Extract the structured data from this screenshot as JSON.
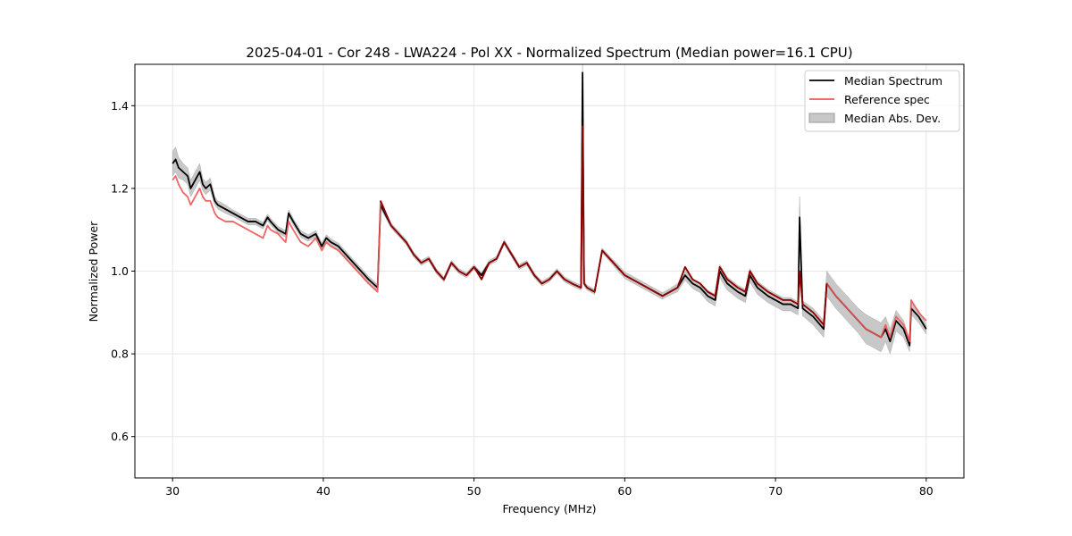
{
  "chart_data": {
    "type": "line",
    "title": "2025-04-01 - Cor 248 - LWA224 - Pol XX - Normalized Spectrum (Median power=16.1 CPU)",
    "xlabel": "Frequency (MHz)",
    "ylabel": "Normalized Power",
    "xlim": [
      27.5,
      82.5
    ],
    "ylim": [
      0.5,
      1.5
    ],
    "xticks": [
      30,
      40,
      50,
      60,
      70,
      80
    ],
    "yticks": [
      0.6,
      0.8,
      1.0,
      1.2,
      1.4
    ],
    "xtick_labels": [
      "30",
      "40",
      "50",
      "60",
      "70",
      "80"
    ],
    "ytick_labels": [
      "0.6",
      "0.8",
      "1.0",
      "1.2",
      "1.4"
    ],
    "grid": true,
    "legend_position": "top-right",
    "series": [
      {
        "name": "Median Spectrum",
        "color": "#000000",
        "x": [
          30.0,
          30.2,
          30.4,
          30.7,
          31.0,
          31.2,
          31.5,
          31.8,
          32.0,
          32.2,
          32.5,
          32.8,
          33.0,
          33.5,
          34.0,
          34.5,
          35.0,
          35.5,
          36.0,
          36.3,
          36.5,
          37.0,
          37.5,
          37.7,
          38.0,
          38.5,
          39.0,
          39.5,
          39.9,
          40.2,
          40.5,
          41.0,
          41.5,
          42.0,
          42.5,
          43.0,
          43.6,
          43.8,
          44.5,
          45.0,
          45.5,
          46.0,
          46.5,
          47.0,
          47.5,
          48.0,
          48.5,
          49.0,
          49.5,
          50.0,
          50.5,
          51.0,
          51.5,
          52.0,
          52.5,
          53.0,
          53.5,
          54.0,
          54.5,
          55.0,
          55.5,
          56.0,
          56.5,
          57.1,
          57.2,
          57.3,
          57.5,
          58.0,
          58.5,
          59.0,
          59.5,
          60.0,
          60.5,
          61.0,
          61.5,
          62.0,
          62.5,
          63.0,
          63.5,
          64.0,
          64.5,
          65.0,
          65.5,
          66.0,
          66.3,
          66.8,
          67.5,
          68.0,
          68.3,
          68.8,
          69.5,
          70.0,
          70.5,
          71.0,
          71.5,
          71.6,
          71.8,
          72.5,
          73.2,
          73.4,
          74.0,
          74.5,
          75.0,
          75.5,
          76.0,
          76.5,
          77.0,
          77.3,
          77.6,
          78.0,
          78.5,
          78.9,
          79.0,
          79.5,
          80.0
        ],
        "values": [
          1.26,
          1.27,
          1.25,
          1.24,
          1.23,
          1.2,
          1.22,
          1.24,
          1.21,
          1.2,
          1.21,
          1.17,
          1.16,
          1.15,
          1.14,
          1.13,
          1.12,
          1.12,
          1.11,
          1.13,
          1.12,
          1.1,
          1.09,
          1.14,
          1.12,
          1.09,
          1.08,
          1.09,
          1.06,
          1.08,
          1.07,
          1.06,
          1.04,
          1.02,
          1.0,
          0.98,
          0.96,
          1.16,
          1.11,
          1.09,
          1.07,
          1.04,
          1.02,
          1.03,
          1.0,
          0.98,
          1.02,
          1.0,
          0.99,
          1.01,
          0.99,
          1.02,
          1.03,
          1.07,
          1.04,
          1.01,
          1.02,
          0.99,
          0.97,
          0.98,
          1.0,
          0.98,
          0.97,
          0.96,
          1.48,
          0.97,
          0.96,
          0.95,
          1.05,
          1.03,
          1.01,
          0.99,
          0.98,
          0.97,
          0.96,
          0.95,
          0.94,
          0.95,
          0.96,
          0.99,
          0.97,
          0.96,
          0.94,
          0.93,
          1.0,
          0.97,
          0.95,
          0.94,
          0.99,
          0.96,
          0.94,
          0.93,
          0.92,
          0.92,
          0.91,
          1.13,
          0.91,
          0.89,
          0.86,
          0.97,
          0.94,
          0.92,
          0.9,
          0.88,
          0.86,
          0.85,
          0.84,
          0.86,
          0.83,
          0.88,
          0.86,
          0.82,
          0.91,
          0.89,
          0.86
        ]
      },
      {
        "name": "Reference spec",
        "color": "#ee5555",
        "x": [
          30.0,
          30.2,
          30.4,
          30.7,
          31.0,
          31.2,
          31.5,
          31.8,
          32.0,
          32.2,
          32.5,
          32.8,
          33.0,
          33.5,
          34.0,
          34.5,
          35.0,
          35.5,
          36.0,
          36.3,
          36.5,
          37.0,
          37.5,
          37.7,
          38.0,
          38.5,
          39.0,
          39.5,
          39.9,
          40.2,
          40.5,
          41.0,
          41.5,
          42.0,
          42.5,
          43.0,
          43.6,
          43.8,
          44.5,
          45.0,
          45.5,
          46.0,
          46.5,
          47.0,
          47.5,
          48.0,
          48.5,
          49.0,
          49.5,
          50.0,
          50.5,
          51.0,
          51.5,
          52.0,
          52.5,
          53.0,
          53.5,
          54.0,
          54.5,
          55.0,
          55.5,
          56.0,
          56.5,
          57.1,
          57.2,
          57.3,
          57.5,
          58.0,
          58.5,
          59.0,
          59.5,
          60.0,
          60.5,
          61.0,
          61.5,
          62.0,
          62.5,
          63.0,
          63.5,
          64.0,
          64.5,
          65.0,
          65.5,
          66.0,
          66.3,
          66.8,
          67.5,
          68.0,
          68.3,
          68.8,
          69.5,
          70.0,
          70.5,
          71.0,
          71.5,
          71.6,
          71.8,
          72.5,
          73.2,
          73.4,
          74.0,
          74.5,
          75.0,
          75.5,
          76.0,
          76.5,
          77.0,
          77.3,
          77.6,
          78.0,
          78.5,
          78.9,
          79.0,
          79.5,
          80.0
        ],
        "values": [
          1.22,
          1.23,
          1.21,
          1.19,
          1.18,
          1.16,
          1.18,
          1.2,
          1.18,
          1.17,
          1.17,
          1.14,
          1.13,
          1.12,
          1.12,
          1.11,
          1.1,
          1.09,
          1.08,
          1.11,
          1.1,
          1.09,
          1.07,
          1.12,
          1.1,
          1.07,
          1.06,
          1.08,
          1.05,
          1.07,
          1.06,
          1.05,
          1.03,
          1.01,
          0.99,
          0.97,
          0.95,
          1.17,
          1.11,
          1.09,
          1.07,
          1.04,
          1.02,
          1.03,
          1.0,
          0.98,
          1.02,
          1.0,
          0.99,
          1.01,
          0.98,
          1.02,
          1.03,
          1.07,
          1.04,
          1.01,
          1.02,
          0.99,
          0.97,
          0.98,
          1.0,
          0.98,
          0.97,
          0.96,
          1.35,
          0.97,
          0.96,
          0.95,
          1.05,
          1.03,
          1.01,
          0.99,
          0.98,
          0.97,
          0.96,
          0.95,
          0.94,
          0.95,
          0.96,
          1.01,
          0.98,
          0.97,
          0.95,
          0.94,
          1.01,
          0.98,
          0.96,
          0.95,
          1.0,
          0.97,
          0.95,
          0.94,
          0.93,
          0.93,
          0.92,
          1.0,
          0.92,
          0.9,
          0.87,
          0.97,
          0.94,
          0.92,
          0.9,
          0.88,
          0.86,
          0.85,
          0.84,
          0.87,
          0.84,
          0.89,
          0.87,
          0.83,
          0.93,
          0.9,
          0.88
        ]
      }
    ],
    "band": {
      "name": "Median Abs. Dev.",
      "color": "#c8c8c8",
      "widths": [
        0.03,
        0.03,
        0.025,
        0.02,
        0.02,
        0.02,
        0.02,
        0.02,
        0.015,
        0.015,
        0.015,
        0.01,
        0.01,
        0.01,
        0.008,
        0.008,
        0.008,
        0.008,
        0.008,
        0.008,
        0.008,
        0.008,
        0.008,
        0.008,
        0.008,
        0.008,
        0.008,
        0.008,
        0.008,
        0.008,
        0.008,
        0.008,
        0.008,
        0.008,
        0.008,
        0.008,
        0.008,
        0.008,
        0.006,
        0.006,
        0.006,
        0.006,
        0.006,
        0.006,
        0.006,
        0.006,
        0.006,
        0.006,
        0.006,
        0.006,
        0.006,
        0.006,
        0.006,
        0.006,
        0.006,
        0.006,
        0.006,
        0.006,
        0.006,
        0.006,
        0.006,
        0.006,
        0.006,
        0.006,
        0.02,
        0.006,
        0.006,
        0.006,
        0.006,
        0.006,
        0.008,
        0.008,
        0.008,
        0.008,
        0.008,
        0.008,
        0.008,
        0.008,
        0.01,
        0.012,
        0.012,
        0.012,
        0.014,
        0.014,
        0.016,
        0.016,
        0.016,
        0.016,
        0.016,
        0.016,
        0.016,
        0.016,
        0.016,
        0.016,
        0.016,
        0.05,
        0.018,
        0.02,
        0.02,
        0.03,
        0.03,
        0.03,
        0.03,
        0.03,
        0.035,
        0.035,
        0.035,
        0.03,
        0.03,
        0.025,
        0.02,
        0.015,
        0.015,
        0.015,
        0.012
      ]
    }
  }
}
